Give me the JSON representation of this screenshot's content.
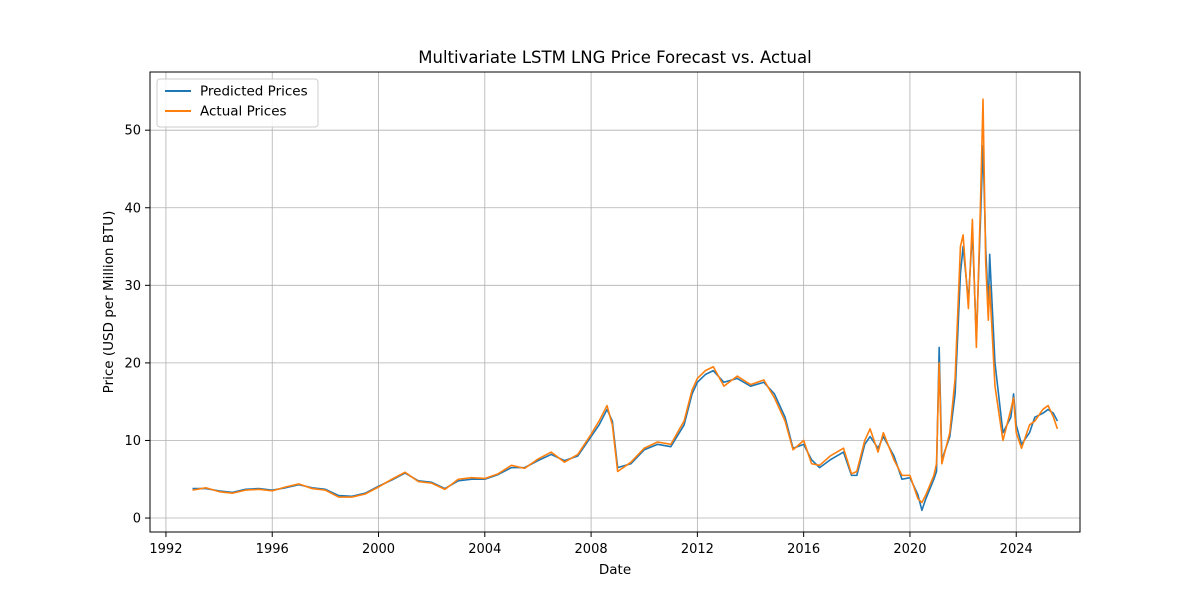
{
  "chart_data": {
    "type": "line",
    "title": "Multivariate LSTM LNG Price Forecast vs. Actual",
    "xlabel": "Date",
    "ylabel": "Price (USD per Million BTU)",
    "xlim": [
      1991.4,
      2026.4
    ],
    "ylim": [
      -1.8,
      57.5
    ],
    "xticks": [
      1992,
      1996,
      2000,
      2004,
      2008,
      2012,
      2016,
      2020,
      2024
    ],
    "yticks": [
      0,
      10,
      20,
      30,
      40,
      50
    ],
    "grid": true,
    "legend_position": "top-left",
    "series": [
      {
        "name": "Predicted Prices",
        "color": "#1f77b4",
        "points": [
          [
            1993.0,
            3.8
          ],
          [
            1993.5,
            3.8
          ],
          [
            1994.0,
            3.5
          ],
          [
            1994.5,
            3.3
          ],
          [
            1995.0,
            3.7
          ],
          [
            1995.5,
            3.8
          ],
          [
            1996.0,
            3.6
          ],
          [
            1996.5,
            3.9
          ],
          [
            1997.0,
            4.3
          ],
          [
            1997.5,
            3.9
          ],
          [
            1998.0,
            3.7
          ],
          [
            1998.5,
            2.9
          ],
          [
            1999.0,
            2.8
          ],
          [
            1999.5,
            3.2
          ],
          [
            2000.0,
            4.1
          ],
          [
            2000.5,
            4.9
          ],
          [
            2001.0,
            5.8
          ],
          [
            2001.5,
            4.8
          ],
          [
            2002.0,
            4.6
          ],
          [
            2002.5,
            3.8
          ],
          [
            2003.0,
            4.8
          ],
          [
            2003.5,
            5.0
          ],
          [
            2004.0,
            5.0
          ],
          [
            2004.5,
            5.6
          ],
          [
            2005.0,
            6.5
          ],
          [
            2005.5,
            6.5
          ],
          [
            2006.0,
            7.4
          ],
          [
            2006.5,
            8.2
          ],
          [
            2007.0,
            7.4
          ],
          [
            2007.5,
            8.0
          ],
          [
            2008.0,
            10.5
          ],
          [
            2008.3,
            12.0
          ],
          [
            2008.6,
            14.0
          ],
          [
            2008.8,
            12.5
          ],
          [
            2009.0,
            6.5
          ],
          [
            2009.5,
            7.0
          ],
          [
            2010.0,
            8.8
          ],
          [
            2010.5,
            9.5
          ],
          [
            2011.0,
            9.2
          ],
          [
            2011.5,
            12.0
          ],
          [
            2011.8,
            16.0
          ],
          [
            2012.0,
            17.5
          ],
          [
            2012.3,
            18.5
          ],
          [
            2012.6,
            19.0
          ],
          [
            2013.0,
            17.5
          ],
          [
            2013.5,
            18.0
          ],
          [
            2014.0,
            17.0
          ],
          [
            2014.5,
            17.5
          ],
          [
            2014.9,
            16.0
          ],
          [
            2015.3,
            13.0
          ],
          [
            2015.6,
            9.0
          ],
          [
            2016.0,
            9.5
          ],
          [
            2016.3,
            7.5
          ],
          [
            2016.6,
            6.5
          ],
          [
            2017.0,
            7.5
          ],
          [
            2017.5,
            8.5
          ],
          [
            2017.8,
            5.5
          ],
          [
            2018.0,
            5.5
          ],
          [
            2018.3,
            9.5
          ],
          [
            2018.5,
            10.5
          ],
          [
            2018.8,
            9.0
          ],
          [
            2019.0,
            10.5
          ],
          [
            2019.4,
            8.0
          ],
          [
            2019.7,
            5.0
          ],
          [
            2020.0,
            5.2
          ],
          [
            2020.3,
            3.0
          ],
          [
            2020.45,
            1.0
          ],
          [
            2020.6,
            2.5
          ],
          [
            2020.9,
            5.0
          ],
          [
            2021.0,
            6.0
          ],
          [
            2021.1,
            22.0
          ],
          [
            2021.2,
            7.5
          ],
          [
            2021.5,
            10.5
          ],
          [
            2021.7,
            16.0
          ],
          [
            2021.9,
            31.5
          ],
          [
            2022.0,
            35.0
          ],
          [
            2022.2,
            28.0
          ],
          [
            2022.35,
            37.0
          ],
          [
            2022.5,
            23.0
          ],
          [
            2022.65,
            38.0
          ],
          [
            2022.75,
            48.0
          ],
          [
            2022.85,
            35.0
          ],
          [
            2022.95,
            27.0
          ],
          [
            2023.0,
            34.0
          ],
          [
            2023.2,
            20.0
          ],
          [
            2023.5,
            11.0
          ],
          [
            2023.8,
            13.0
          ],
          [
            2023.9,
            16.0
          ],
          [
            2024.0,
            12.0
          ],
          [
            2024.2,
            9.5
          ],
          [
            2024.5,
            11.0
          ],
          [
            2024.7,
            13.0
          ],
          [
            2025.0,
            13.5
          ],
          [
            2025.2,
            14.0
          ],
          [
            2025.4,
            13.5
          ],
          [
            2025.55,
            12.5
          ]
        ]
      },
      {
        "name": "Actual Prices",
        "color": "#ff7f0e",
        "points": [
          [
            1993.0,
            3.6
          ],
          [
            1993.5,
            3.9
          ],
          [
            1994.0,
            3.4
          ],
          [
            1994.5,
            3.2
          ],
          [
            1995.0,
            3.6
          ],
          [
            1995.5,
            3.7
          ],
          [
            1996.0,
            3.5
          ],
          [
            1996.5,
            4.0
          ],
          [
            1997.0,
            4.4
          ],
          [
            1997.5,
            3.8
          ],
          [
            1998.0,
            3.6
          ],
          [
            1998.5,
            2.7
          ],
          [
            1999.0,
            2.7
          ],
          [
            1999.5,
            3.1
          ],
          [
            2000.0,
            4.0
          ],
          [
            2000.5,
            5.0
          ],
          [
            2001.0,
            5.9
          ],
          [
            2001.5,
            4.7
          ],
          [
            2002.0,
            4.5
          ],
          [
            2002.5,
            3.7
          ],
          [
            2003.0,
            5.0
          ],
          [
            2003.5,
            5.2
          ],
          [
            2004.0,
            5.1
          ],
          [
            2004.5,
            5.7
          ],
          [
            2005.0,
            6.8
          ],
          [
            2005.5,
            6.4
          ],
          [
            2006.0,
            7.6
          ],
          [
            2006.5,
            8.5
          ],
          [
            2007.0,
            7.2
          ],
          [
            2007.5,
            8.2
          ],
          [
            2008.0,
            10.8
          ],
          [
            2008.3,
            12.5
          ],
          [
            2008.6,
            14.5
          ],
          [
            2008.8,
            12.0
          ],
          [
            2009.0,
            6.0
          ],
          [
            2009.5,
            7.2
          ],
          [
            2010.0,
            9.0
          ],
          [
            2010.5,
            9.8
          ],
          [
            2011.0,
            9.5
          ],
          [
            2011.5,
            12.5
          ],
          [
            2011.8,
            16.5
          ],
          [
            2012.0,
            18.0
          ],
          [
            2012.3,
            19.0
          ],
          [
            2012.6,
            19.5
          ],
          [
            2013.0,
            17.0
          ],
          [
            2013.5,
            18.3
          ],
          [
            2014.0,
            17.2
          ],
          [
            2014.5,
            17.8
          ],
          [
            2014.9,
            15.5
          ],
          [
            2015.3,
            12.5
          ],
          [
            2015.6,
            8.8
          ],
          [
            2016.0,
            10.0
          ],
          [
            2016.3,
            7.0
          ],
          [
            2016.6,
            6.8
          ],
          [
            2017.0,
            8.0
          ],
          [
            2017.5,
            9.0
          ],
          [
            2017.8,
            5.7
          ],
          [
            2018.0,
            6.0
          ],
          [
            2018.3,
            10.0
          ],
          [
            2018.5,
            11.5
          ],
          [
            2018.8,
            8.5
          ],
          [
            2019.0,
            11.0
          ],
          [
            2019.4,
            7.5
          ],
          [
            2019.7,
            5.5
          ],
          [
            2020.0,
            5.5
          ],
          [
            2020.3,
            2.5
          ],
          [
            2020.45,
            2.0
          ],
          [
            2020.6,
            3.0
          ],
          [
            2020.9,
            5.5
          ],
          [
            2021.0,
            7.0
          ],
          [
            2021.1,
            20.0
          ],
          [
            2021.2,
            7.0
          ],
          [
            2021.5,
            11.0
          ],
          [
            2021.7,
            18.0
          ],
          [
            2021.9,
            35.0
          ],
          [
            2022.0,
            36.5
          ],
          [
            2022.2,
            27.0
          ],
          [
            2022.35,
            38.5
          ],
          [
            2022.5,
            22.0
          ],
          [
            2022.65,
            40.0
          ],
          [
            2022.75,
            54.0
          ],
          [
            2022.85,
            33.0
          ],
          [
            2022.95,
            25.5
          ],
          [
            2023.0,
            30.0
          ],
          [
            2023.2,
            17.0
          ],
          [
            2023.5,
            10.0
          ],
          [
            2023.8,
            14.0
          ],
          [
            2023.9,
            15.5
          ],
          [
            2024.0,
            11.0
          ],
          [
            2024.2,
            9.0
          ],
          [
            2024.5,
            12.0
          ],
          [
            2024.7,
            12.5
          ],
          [
            2025.0,
            14.0
          ],
          [
            2025.2,
            14.5
          ],
          [
            2025.4,
            13.0
          ],
          [
            2025.55,
            11.5
          ]
        ]
      }
    ]
  }
}
